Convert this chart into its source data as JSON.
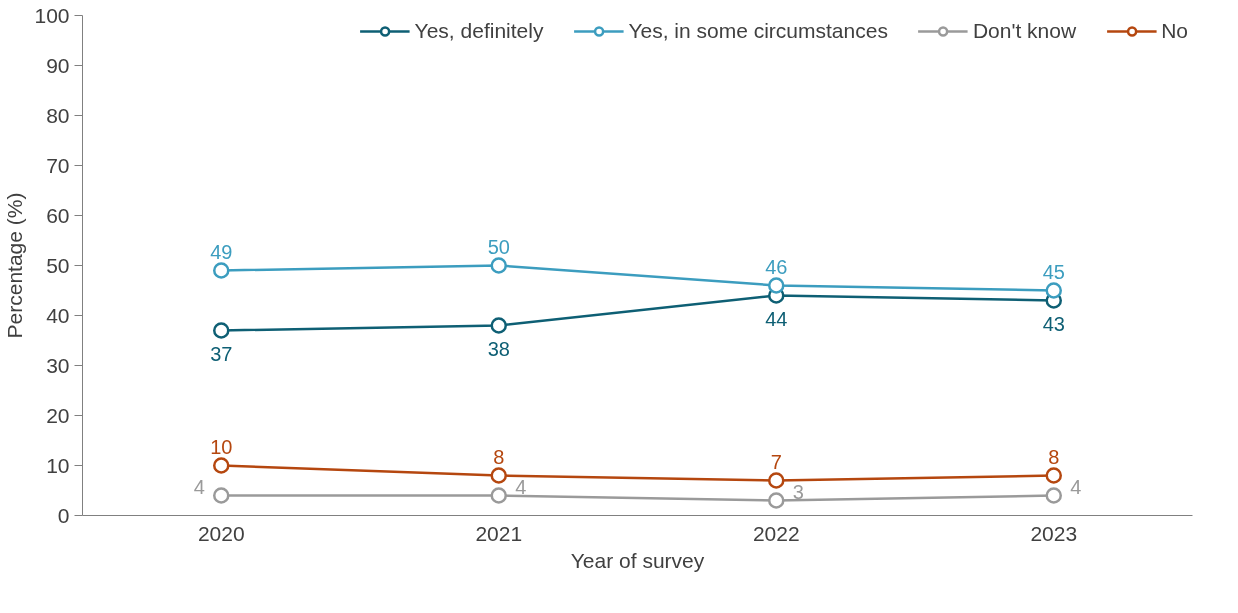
{
  "chart_data": {
    "type": "line",
    "xlabel": "Year of survey",
    "ylabel": "Percentage (%)",
    "categories": [
      "2020",
      "2021",
      "2022",
      "2023"
    ],
    "series": [
      {
        "name": "Yes, definitely",
        "color": "#0e5f74",
        "values": [
          37,
          38,
          44,
          43
        ]
      },
      {
        "name": "Yes, in some circumstances",
        "color": "#3c9dbf",
        "values": [
          49,
          50,
          46,
          45
        ]
      },
      {
        "name": "Don't know",
        "color": "#9a9a9a",
        "values": [
          4,
          4,
          3,
          4
        ]
      },
      {
        "name": "No",
        "color": "#b5470f",
        "values": [
          10,
          8,
          7,
          8
        ]
      }
    ],
    "ylim": [
      0,
      100
    ],
    "yticks": [
      0,
      10,
      20,
      30,
      40,
      50,
      60,
      70,
      80,
      90,
      100
    ],
    "grid": false,
    "legend": "top",
    "marker": "circle",
    "line_style": "solid",
    "data_labels": true
  }
}
